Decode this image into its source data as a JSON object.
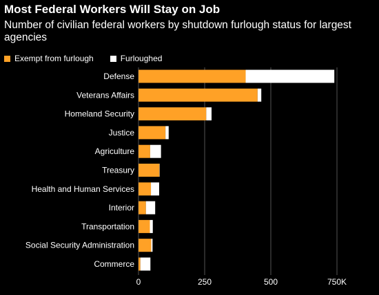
{
  "title": "Most Federal Workers Will Stay on Job",
  "subtitle": "Number of civilian federal workers by shutdown furlough status for largest agencies",
  "legend": {
    "exempt": "Exempt from furlough",
    "furloughed": "Furloughed"
  },
  "colors": {
    "exempt": "#FFA126",
    "furloughed": "#FFFFFF",
    "gridline": "#555555",
    "background": "#000000",
    "text": "#FFFFFF"
  },
  "chart_data": {
    "type": "bar",
    "orientation": "horizontal",
    "stacked": true,
    "categories": [
      "Defense",
      "Veterans Affairs",
      "Homeland Security",
      "Justice",
      "Agriculture",
      "Treasury",
      "Health and Human Services",
      "Interior",
      "Transportation",
      "Social Security Administration",
      "Commerce"
    ],
    "series": [
      {
        "name": "Exempt from furlough",
        "values": [
          405,
          450,
          256,
          102,
          44,
          79,
          47,
          28,
          43,
          48,
          7
        ]
      },
      {
        "name": "Furloughed",
        "values": [
          335,
          14,
          20,
          12,
          41,
          1,
          31,
          35,
          11,
          5,
          38
        ]
      }
    ],
    "xlim": [
      0,
      750
    ],
    "xticks": [
      0,
      250,
      500,
      750
    ],
    "xtick_labels": [
      "0",
      "250",
      "500",
      "750K"
    ],
    "grid": true,
    "legend_position": "top-left"
  }
}
